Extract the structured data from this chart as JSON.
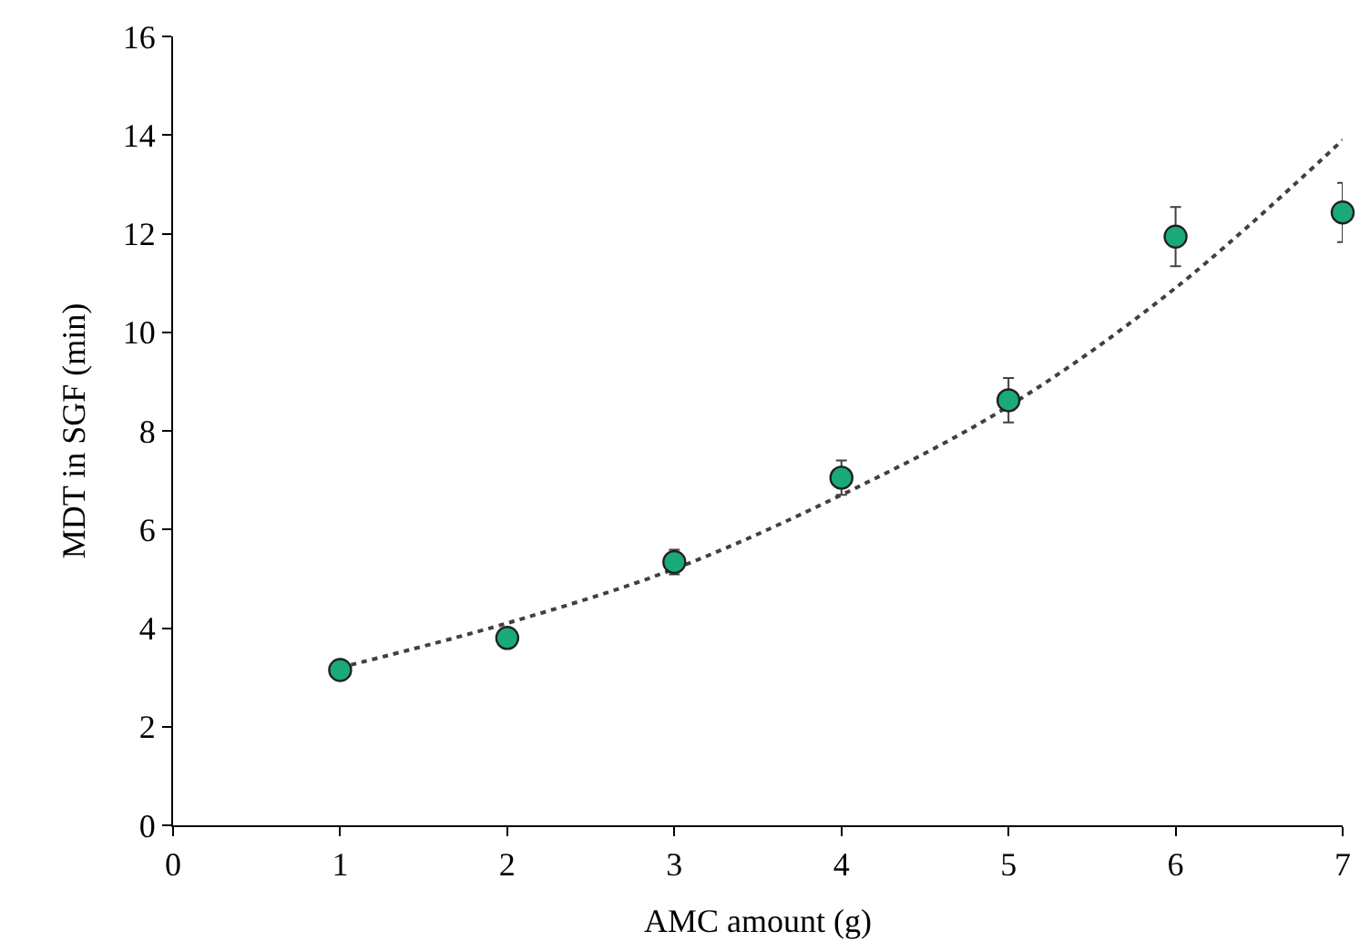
{
  "chart_data": {
    "type": "scatter",
    "xlabel": "AMC amount (g)",
    "ylabel": "MDT in SGF (min)",
    "xlim": [
      0,
      7
    ],
    "xticks": [
      0,
      1,
      2,
      3,
      4,
      5,
      6,
      7
    ],
    "ylim": [
      0,
      16
    ],
    "yticks": [
      0,
      2,
      4,
      6,
      8,
      10,
      12,
      14,
      16
    ],
    "legend": false,
    "series": [
      {
        "type": "line",
        "color": "#404040",
        "marker": "none",
        "line_style": "dotted",
        "x": [
          1,
          2,
          3,
          4,
          5,
          6,
          7
        ],
        "values": [
          3.2,
          4.1,
          5.2,
          6.7,
          8.5,
          10.9,
          13.9
        ]
      },
      {
        "color": "#1aa97b",
        "marker": "circle",
        "x": [
          1,
          2,
          3,
          4,
          5,
          6,
          7
        ],
        "values": [
          3.15,
          3.8,
          5.34,
          7.05,
          8.62,
          11.94,
          12.43
        ],
        "errors": [
          null,
          null,
          0.25,
          0.35,
          0.45,
          0.6,
          0.6
        ]
      }
    ]
  }
}
